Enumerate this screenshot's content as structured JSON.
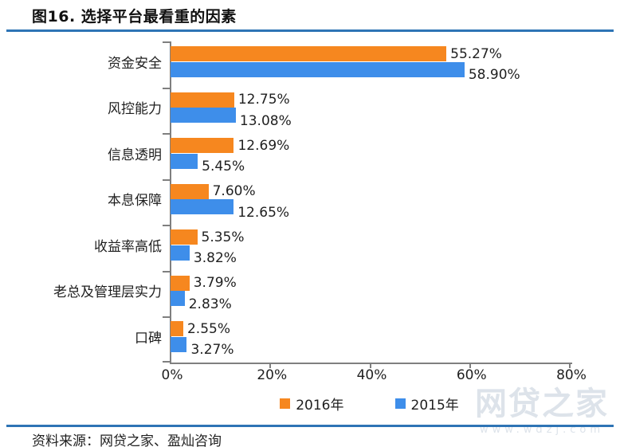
{
  "title": "图16. 选择平台最看重的因素",
  "source": "资料来源：网贷之家、盈灿咨询",
  "watermark": {
    "name": "网贷之家",
    "url": "www.wdzj.com"
  },
  "colors": {
    "series_2016": "#F6871F",
    "series_2015": "#3E8EEA",
    "divider_rule": "#2E74B5",
    "axis": "#7f7f7f",
    "text": "#1f1f1f"
  },
  "chart_data": {
    "type": "bar",
    "orientation": "horizontal",
    "title": "图16. 选择平台最看重的因素",
    "categories": [
      "资金安全",
      "风控能力",
      "信息透明",
      "本息保障",
      "收益率高低",
      "老总及管理层实力",
      "口碑"
    ],
    "series": [
      {
        "name": "2016年",
        "color": "#F6871F",
        "values": [
          55.27,
          12.75,
          12.69,
          7.6,
          5.35,
          3.79,
          2.55
        ],
        "labels": [
          "55.27%",
          "12.75%",
          "12.69%",
          "7.60%",
          "5.35%",
          "3.79%",
          "2.55%"
        ]
      },
      {
        "name": "2015年",
        "color": "#3E8EEA",
        "values": [
          58.9,
          13.08,
          5.45,
          12.65,
          3.82,
          2.83,
          3.27
        ],
        "labels": [
          "58.90%",
          "13.08%",
          "5.45%",
          "12.65%",
          "3.82%",
          "2.83%",
          "3.27%"
        ]
      }
    ],
    "value_labels": true,
    "xlabel": "",
    "ylabel": "",
    "xlim": [
      0,
      80
    ],
    "x_ticks": [
      {
        "value": 0,
        "label": "0%"
      },
      {
        "value": 20,
        "label": "20%"
      },
      {
        "value": 40,
        "label": "40%"
      },
      {
        "value": 60,
        "label": "60%"
      },
      {
        "value": 80,
        "label": "80%"
      }
    ],
    "grid": false,
    "legend_position": "bottom"
  }
}
